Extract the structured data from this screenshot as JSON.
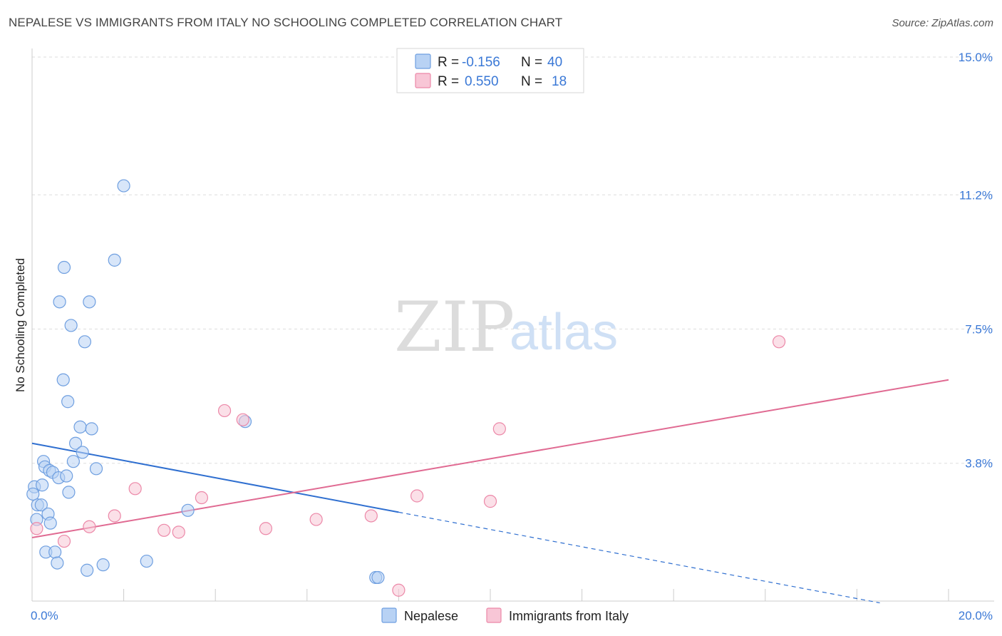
{
  "header": {
    "title": "NEPALESE VS IMMIGRANTS FROM ITALY NO SCHOOLING COMPLETED CORRELATION CHART",
    "source": "Source: ZipAtlas.com"
  },
  "colors": {
    "nepalese": "#6f9fe0",
    "italy": "#ec88a8",
    "nepalese_fill": "#b8d2f4",
    "italy_fill": "#f8c6d6",
    "nepalese_line": "#2f6fd0",
    "italy_line": "#e06a92",
    "grid": "#dddddd",
    "axis_label": "#3a78d6"
  },
  "legend": {
    "rows": [
      {
        "r_label": "R = ",
        "r_value": "-0.156",
        "n_label": "N = ",
        "n_value": "40"
      },
      {
        "r_label": "R = ",
        "r_value": "0.550",
        "n_label": "N = ",
        "n_value": "18"
      }
    ]
  },
  "watermark": {
    "zip": "ZIP",
    "atlas": "atlas"
  },
  "chart_data": {
    "type": "scatter",
    "title": "NEPALESE VS IMMIGRANTS FROM ITALY NO SCHOOLING COMPLETED CORRELATION CHART",
    "xlabel": "",
    "ylabel": "No Schooling Completed",
    "xlim": [
      0,
      20
    ],
    "ylim": [
      0,
      15
    ],
    "x_tick_labels": [
      "0.0%",
      "20.0%"
    ],
    "y_ticks": [
      3.8,
      7.5,
      11.2,
      15.0
    ],
    "y_tick_labels": [
      "3.8%",
      "7.5%",
      "11.2%",
      "15.0%"
    ],
    "series": [
      {
        "name": "Nepalese",
        "r": -0.156,
        "n": 40,
        "points": [
          [
            0.05,
            3.15
          ],
          [
            0.1,
            2.25
          ],
          [
            0.12,
            2.65
          ],
          [
            0.2,
            2.65
          ],
          [
            0.22,
            3.2
          ],
          [
            0.25,
            3.85
          ],
          [
            0.28,
            3.7
          ],
          [
            0.3,
            1.35
          ],
          [
            0.35,
            2.4
          ],
          [
            0.38,
            3.6
          ],
          [
            0.4,
            2.15
          ],
          [
            0.45,
            3.55
          ],
          [
            0.5,
            1.35
          ],
          [
            0.55,
            1.05
          ],
          [
            0.58,
            3.4
          ],
          [
            0.6,
            8.25
          ],
          [
            0.68,
            6.1
          ],
          [
            0.7,
            9.2
          ],
          [
            0.75,
            3.45
          ],
          [
            0.78,
            5.5
          ],
          [
            0.8,
            3.0
          ],
          [
            0.85,
            7.6
          ],
          [
            0.9,
            3.85
          ],
          [
            0.95,
            4.35
          ],
          [
            1.05,
            4.8
          ],
          [
            1.1,
            4.1
          ],
          [
            1.15,
            7.15
          ],
          [
            1.2,
            0.85
          ],
          [
            1.25,
            8.25
          ],
          [
            1.3,
            4.75
          ],
          [
            1.4,
            3.65
          ],
          [
            1.55,
            1.0
          ],
          [
            1.8,
            9.4
          ],
          [
            2.0,
            11.45
          ],
          [
            2.5,
            1.1
          ],
          [
            3.4,
            2.5
          ],
          [
            4.65,
            4.95
          ],
          [
            7.5,
            0.65
          ],
          [
            7.55,
            0.65
          ],
          [
            0.02,
            2.95
          ]
        ],
        "trend": {
          "x0": 0,
          "y0": 4.35,
          "x1": 8,
          "y1": 2.45,
          "dash_to_x": 18.5,
          "dash_to_y": -0.05
        }
      },
      {
        "name": "Immigrants from Italy",
        "r": 0.55,
        "n": 18,
        "points": [
          [
            0.1,
            2.0
          ],
          [
            0.7,
            1.65
          ],
          [
            1.25,
            2.05
          ],
          [
            1.8,
            2.35
          ],
          [
            2.25,
            3.1
          ],
          [
            2.88,
            1.95
          ],
          [
            3.2,
            1.9
          ],
          [
            3.7,
            2.85
          ],
          [
            4.2,
            5.25
          ],
          [
            4.6,
            5.0
          ],
          [
            5.1,
            2.0
          ],
          [
            6.2,
            2.25
          ],
          [
            7.4,
            2.35
          ],
          [
            8.0,
            0.3
          ],
          [
            8.4,
            2.9
          ],
          [
            10.0,
            2.75
          ],
          [
            10.2,
            4.75
          ],
          [
            16.3,
            7.15
          ]
        ],
        "trend": {
          "x0": 0,
          "y0": 1.75,
          "x1": 20,
          "y1": 6.1
        }
      }
    ]
  }
}
